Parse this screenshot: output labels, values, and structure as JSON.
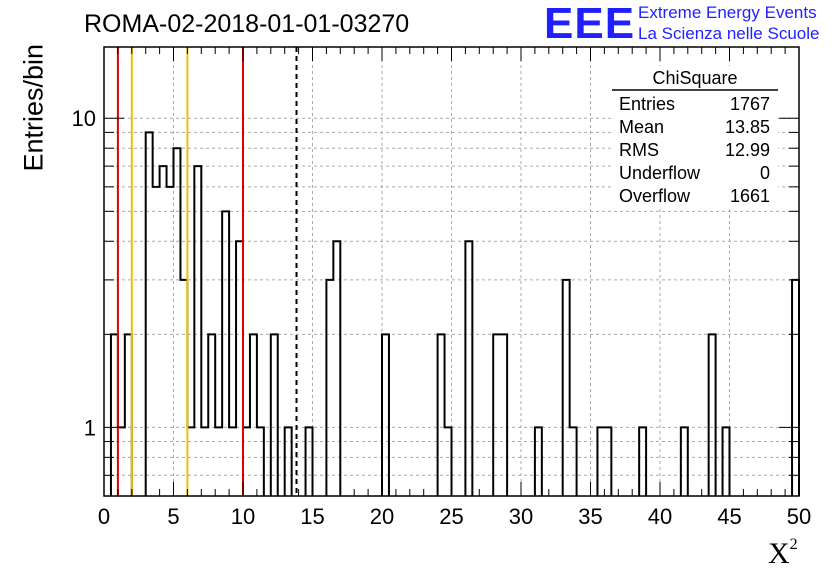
{
  "header": {
    "title": "ROMA-02-2018-01-01-03270",
    "logo_text": "EEE",
    "logo_line1": "Extreme Energy Events",
    "logo_line2": "La Scienza nelle Scuole"
  },
  "stats": {
    "title": "ChiSquare",
    "rows": [
      {
        "label": "Entries",
        "value": "1767"
      },
      {
        "label": "Mean",
        "value": "13.85"
      },
      {
        "label": "RMS",
        "value": "12.99"
      },
      {
        "label": "Underflow",
        "value": "0"
      },
      {
        "label": "Overflow",
        "value": "1661"
      }
    ]
  },
  "chart_data": {
    "type": "bar",
    "style": "step-histogram",
    "title": "ROMA-02-2018-01-01-03270",
    "xlabel": "X",
    "xlabel_superscript": "2",
    "ylabel": "Entries/bin",
    "xlim": [
      0,
      50
    ],
    "ylim": [
      0.6,
      17
    ],
    "yscale": "log",
    "grid": true,
    "bin_width": 0.5,
    "x_ticks": [
      "0",
      "5",
      "10",
      "15",
      "20",
      "25",
      "30",
      "35",
      "40",
      "45",
      "50"
    ],
    "y_ticks": [
      {
        "value": 1,
        "label": "1"
      },
      {
        "value": 10,
        "label": "10"
      }
    ],
    "bins": [
      {
        "x0": 0.5,
        "x1": 1.0,
        "y": 2
      },
      {
        "x0": 1.0,
        "x1": 1.5,
        "y": 1
      },
      {
        "x0": 1.5,
        "x1": 2.0,
        "y": 2
      },
      {
        "x0": 3.0,
        "x1": 3.5,
        "y": 9
      },
      {
        "x0": 3.5,
        "x1": 4.0,
        "y": 6
      },
      {
        "x0": 4.0,
        "x1": 4.5,
        "y": 7
      },
      {
        "x0": 4.5,
        "x1": 5.0,
        "y": 6
      },
      {
        "x0": 5.0,
        "x1": 5.5,
        "y": 8
      },
      {
        "x0": 5.5,
        "x1": 6.0,
        "y": 3
      },
      {
        "x0": 6.0,
        "x1": 6.5,
        "y": 1
      },
      {
        "x0": 6.5,
        "x1": 7.0,
        "y": 7
      },
      {
        "x0": 7.0,
        "x1": 7.5,
        "y": 1
      },
      {
        "x0": 7.5,
        "x1": 8.0,
        "y": 2
      },
      {
        "x0": 8.0,
        "x1": 8.5,
        "y": 1
      },
      {
        "x0": 8.5,
        "x1": 9.0,
        "y": 5
      },
      {
        "x0": 9.0,
        "x1": 9.5,
        "y": 1
      },
      {
        "x0": 9.5,
        "x1": 10.0,
        "y": 4
      },
      {
        "x0": 10.0,
        "x1": 10.5,
        "y": 1
      },
      {
        "x0": 10.5,
        "x1": 11.0,
        "y": 2
      },
      {
        "x0": 11.0,
        "x1": 11.5,
        "y": 1
      },
      {
        "x0": 12.0,
        "x1": 12.5,
        "y": 2
      },
      {
        "x0": 13.0,
        "x1": 13.5,
        "y": 1
      },
      {
        "x0": 14.5,
        "x1": 15.0,
        "y": 1
      },
      {
        "x0": 16.0,
        "x1": 16.5,
        "y": 3
      },
      {
        "x0": 16.5,
        "x1": 17.0,
        "y": 4
      },
      {
        "x0": 20.0,
        "x1": 20.5,
        "y": 2
      },
      {
        "x0": 24.0,
        "x1": 24.5,
        "y": 2
      },
      {
        "x0": 24.5,
        "x1": 25.0,
        "y": 1
      },
      {
        "x0": 26.0,
        "x1": 26.5,
        "y": 4
      },
      {
        "x0": 28.0,
        "x1": 29.0,
        "y": 2
      },
      {
        "x0": 31.0,
        "x1": 31.5,
        "y": 1
      },
      {
        "x0": 33.0,
        "x1": 33.5,
        "y": 3
      },
      {
        "x0": 33.5,
        "x1": 34.0,
        "y": 1
      },
      {
        "x0": 35.5,
        "x1": 36.5,
        "y": 1
      },
      {
        "x0": 38.5,
        "x1": 39.0,
        "y": 1
      },
      {
        "x0": 41.5,
        "x1": 42.0,
        "y": 1
      },
      {
        "x0": 43.5,
        "x1": 44.0,
        "y": 2
      },
      {
        "x0": 44.5,
        "x1": 45.0,
        "y": 1
      },
      {
        "x0": 49.5,
        "x1": 50.0,
        "y": 3
      }
    ],
    "vertical_lines": [
      {
        "x": 1,
        "color": "#e00000",
        "style": "solid"
      },
      {
        "x": 2,
        "color": "#f0c000",
        "style": "solid"
      },
      {
        "x": 6,
        "color": "#f0c000",
        "style": "solid"
      },
      {
        "x": 10,
        "color": "#e00000",
        "style": "solid"
      },
      {
        "x": 13.85,
        "color": "#000000",
        "style": "dashed"
      }
    ]
  }
}
